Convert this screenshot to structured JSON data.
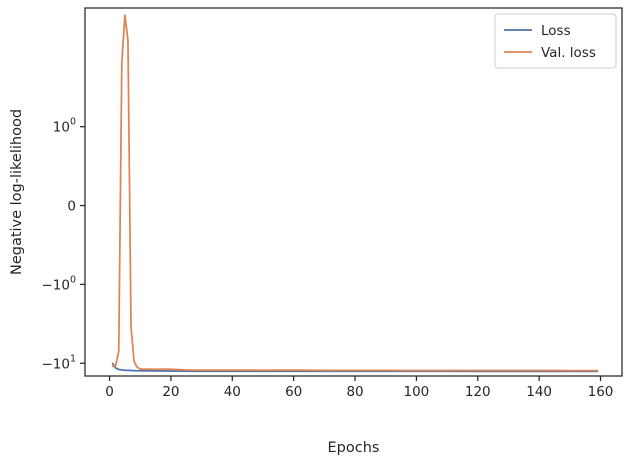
{
  "chart_data": {
    "type": "line",
    "xlabel": "Epochs",
    "ylabel": "Negative log-likelihood",
    "xlim": [
      -8,
      167
    ],
    "yscale": "symlog",
    "ylim": [
      -14.5,
      32
    ],
    "grid": false,
    "legend_position": "top-right",
    "x_ticks": [
      0,
      20,
      40,
      60,
      80,
      100,
      120,
      140,
      160
    ],
    "y_ticks": [
      {
        "value": -10,
        "base": "−10",
        "exp": "1"
      },
      {
        "value": -1,
        "base": "−10",
        "exp": "0"
      },
      {
        "value": 0,
        "base": "0",
        "exp": ""
      },
      {
        "value": 1,
        "base": "10",
        "exp": "0"
      }
    ],
    "series": [
      {
        "name": "Loss",
        "color": "#4c72b0",
        "x": [
          1,
          2,
          3,
          4,
          5,
          6,
          8,
          10,
          15,
          20,
          25,
          30,
          40,
          50,
          60,
          70,
          80,
          90,
          100,
          110,
          120,
          130,
          140,
          150,
          159
        ],
        "values": [
          -10.1,
          -11.5,
          -12.0,
          -12.15,
          -12.25,
          -12.3,
          -12.4,
          -12.45,
          -12.5,
          -12.55,
          -12.58,
          -12.6,
          -12.6,
          -12.62,
          -12.62,
          -12.63,
          -12.63,
          -12.64,
          -12.64,
          -12.64,
          -12.65,
          -12.65,
          -12.65,
          -12.65,
          -12.66
        ]
      },
      {
        "name": "Val. loss",
        "color": "#dd8452",
        "x": [
          1,
          2,
          3,
          4,
          5,
          6,
          7,
          8,
          9,
          10,
          12,
          14,
          16,
          18,
          20,
          22,
          25,
          28,
          30,
          35,
          40,
          45,
          50,
          55,
          60,
          65,
          70,
          75,
          80,
          85,
          90,
          95,
          100,
          105,
          110,
          115,
          120,
          125,
          130,
          135,
          140,
          145,
          150,
          155,
          159
        ],
        "values": [
          -11.0,
          -10.7,
          -7.0,
          6.5,
          26.0,
          12.5,
          -3.5,
          -9.5,
          -11.2,
          -11.8,
          -11.85,
          -11.9,
          -11.9,
          -11.85,
          -11.9,
          -12.0,
          -12.15,
          -12.2,
          -12.2,
          -12.2,
          -12.2,
          -12.2,
          -12.25,
          -12.2,
          -12.2,
          -12.25,
          -12.3,
          -12.3,
          -12.3,
          -12.3,
          -12.3,
          -12.35,
          -12.35,
          -12.35,
          -12.35,
          -12.35,
          -12.35,
          -12.35,
          -12.35,
          -12.35,
          -12.35,
          -12.35,
          -12.38,
          -12.38,
          -12.4
        ]
      }
    ]
  }
}
